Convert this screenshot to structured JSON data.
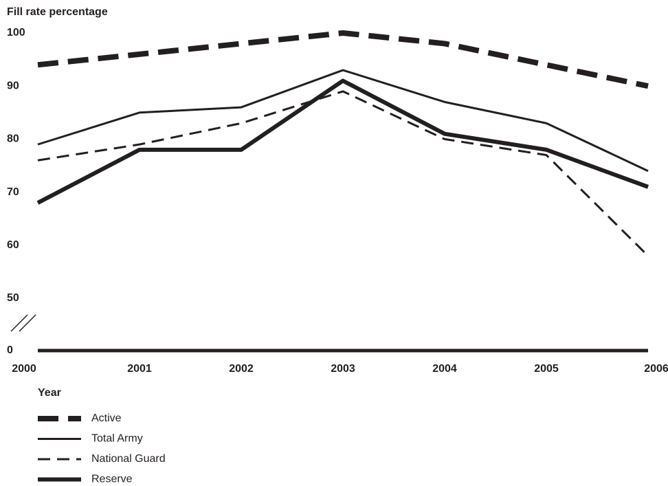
{
  "chart_data": {
    "type": "line",
    "y_axis_label": "Fill rate percentage",
    "x_axis_label": "Year",
    "categories": [
      "2000",
      "2001",
      "2002",
      "2003",
      "2004",
      "2005",
      "2006"
    ],
    "ylim": [
      0,
      100
    ],
    "yticks": [
      0,
      50,
      60,
      70,
      80,
      90,
      100
    ],
    "axis_break": [
      0,
      50
    ],
    "grid": false,
    "legend": "bottom-left",
    "series": [
      {
        "name": "Active",
        "color": "#231f20",
        "style": "thick-dashed",
        "values": [
          94,
          96,
          98,
          100,
          98,
          94,
          90
        ]
      },
      {
        "name": "Total Army",
        "color": "#231f20",
        "style": "solid",
        "values": [
          79,
          85,
          86,
          93,
          87,
          83,
          74
        ]
      },
      {
        "name": "National Guard",
        "color": "#231f20",
        "style": "dashed",
        "values": [
          76,
          79,
          83,
          89,
          80,
          77,
          58
        ]
      },
      {
        "name": "Reserve",
        "color": "#231f20",
        "style": "thick-solid",
        "values": [
          68,
          78,
          78,
          91,
          81,
          78,
          71
        ]
      }
    ]
  }
}
